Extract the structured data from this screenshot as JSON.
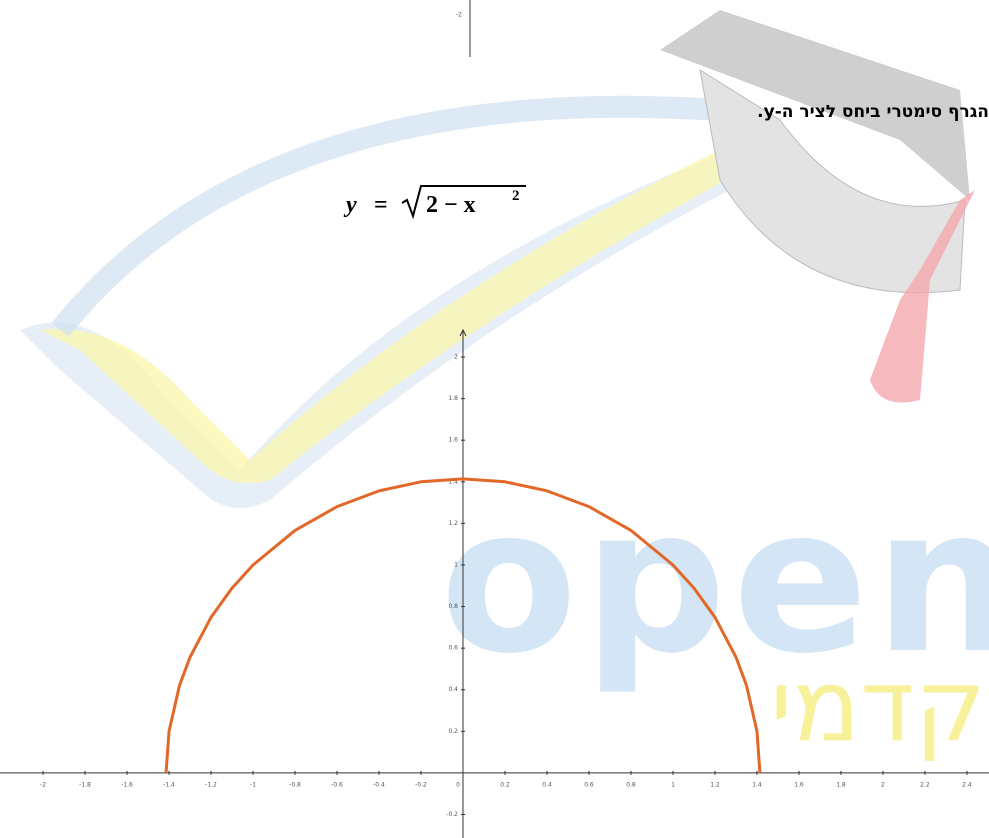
{
  "document": {
    "upper_fragment_tick": "-2",
    "statement": "הגרף סימטרי ביחס לציר ה-y.",
    "formula": {
      "lhs": "y",
      "equals": "=",
      "radicand": "2 − x",
      "exponent": "2"
    },
    "watermark": {
      "brand": "openbook",
      "tagline": "המרכז לקידום אקדמי"
    }
  },
  "chart_data": {
    "type": "line",
    "x": [
      -1.4142,
      -1.4,
      -1.35,
      -1.3,
      -1.2,
      -1.1,
      -1,
      -0.8,
      -0.6,
      -0.4,
      -0.2,
      0,
      0.2,
      0.4,
      0.6,
      0.8,
      1,
      1.1,
      1.2,
      1.3,
      1.35,
      1.4,
      1.4142
    ],
    "series": [
      {
        "color": "#e2682a",
        "values": [
          0,
          0.2,
          0.4213,
          0.5568,
          0.7483,
          0.8888,
          1,
          1.1662,
          1.2806,
          1.3565,
          1.4,
          1.4142,
          1.4,
          1.3565,
          1.2806,
          1.1662,
          1,
          0.8888,
          0.7483,
          0.5568,
          0.4213,
          0.2,
          0
        ]
      }
    ],
    "xlim": [
      -2.205,
      2.505
    ],
    "ylim": [
      -0.313,
      2.13
    ],
    "xticks": [
      -2,
      -1.8,
      -1.6,
      -1.4,
      -1.2,
      -1,
      -0.8,
      -0.6,
      -0.4,
      -0.2,
      0,
      0.2,
      0.4,
      0.6,
      0.8,
      1,
      1.2,
      1.4,
      1.6,
      1.8,
      2,
      2.2,
      2.4
    ],
    "yticks": [
      -0.2,
      0.2,
      0.4,
      0.6,
      0.8,
      1,
      1.2,
      1.4,
      1.6,
      1.8,
      2
    ]
  }
}
